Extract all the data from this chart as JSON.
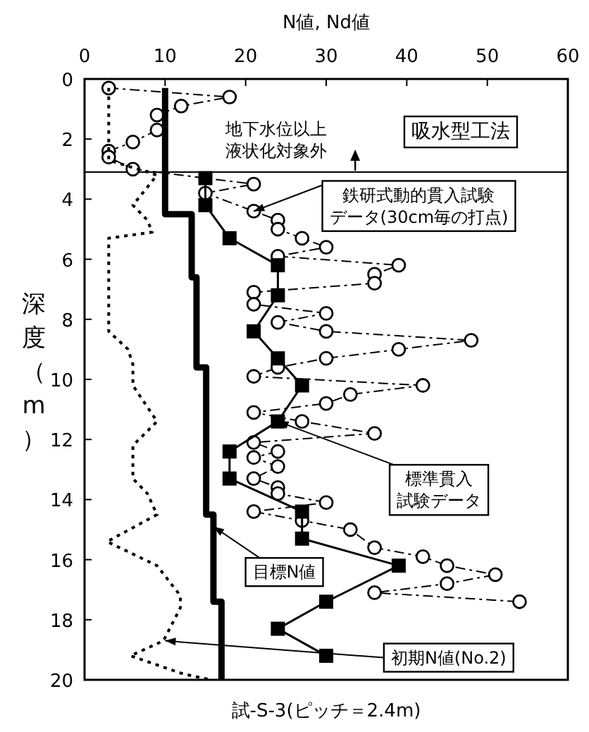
{
  "chart_data": {
    "type": "line",
    "xlabel": "N値, Nd値",
    "ylabel": "深度（m）",
    "xlim": [
      0,
      60
    ],
    "xticks": [
      0,
      10,
      20,
      30,
      40,
      50,
      60
    ],
    "ylim": [
      20,
      0
    ],
    "yticks": [
      0,
      2,
      4,
      6,
      8,
      10,
      12,
      14,
      16,
      18,
      20
    ],
    "grid": false,
    "series": [
      {
        "type": "line",
        "color": "#000000",
        "marker": "circle",
        "line_style": "dashed",
        "x": [
          3,
          18,
          12,
          9,
          9,
          6,
          3,
          3,
          6,
          21,
          15,
          21,
          24,
          24,
          27,
          30,
          24,
          39,
          36,
          36,
          21,
          21,
          30,
          24,
          30,
          48,
          39,
          30,
          24,
          21,
          42,
          33,
          30,
          21,
          27,
          36,
          21,
          24,
          21,
          24,
          21,
          24,
          24,
          30,
          21,
          27,
          33,
          36,
          42,
          45,
          51,
          45,
          36,
          54
        ],
        "values": [
          0.3,
          0.6,
          0.9,
          1.2,
          1.7,
          2.1,
          2.4,
          2.6,
          3.0,
          3.5,
          3.8,
          4.4,
          4.7,
          5.0,
          5.3,
          5.6,
          5.9,
          6.2,
          6.5,
          6.8,
          7.1,
          7.5,
          7.8,
          8.1,
          8.4,
          8.7,
          9.0,
          9.3,
          9.6,
          9.9,
          10.2,
          10.5,
          10.8,
          11.1,
          11.4,
          11.8,
          12.1,
          12.4,
          12.6,
          12.9,
          13.3,
          13.6,
          13.8,
          14.1,
          14.4,
          14.7,
          15.0,
          15.6,
          15.9,
          16.2,
          16.5,
          16.8,
          17.1,
          17.4
        ]
      },
      {
        "type": "line",
        "color": "#000000",
        "marker": "square",
        "line_style": "solid",
        "x": [
          15,
          15,
          18,
          24,
          24,
          21,
          24,
          27,
          24,
          18,
          18,
          27,
          27,
          39,
          30,
          24,
          30
        ],
        "values": [
          3.3,
          4.2,
          5.3,
          6.2,
          7.2,
          8.4,
          9.3,
          10.2,
          11.4,
          12.4,
          13.3,
          14.4,
          15.3,
          16.2,
          17.4,
          18.3,
          19.2
        ]
      },
      {
        "type": "line",
        "color": "#000000",
        "marker": "none",
        "line_style": "solid",
        "x": [
          10,
          10,
          13.3,
          13.3,
          13.9,
          13.9,
          15.1,
          15.1,
          16,
          16,
          17,
          17
        ],
        "values": [
          0.3,
          4.5,
          4.5,
          6.6,
          6.6,
          9.6,
          9.6,
          14.5,
          14.5,
          17.4,
          17.4,
          20
        ]
      },
      {
        "type": "line",
        "color": "#000000",
        "marker": "none",
        "line_style": "dotted",
        "x": [
          3,
          3,
          9,
          6,
          7.8,
          8.4,
          3,
          3,
          5.4,
          6,
          6,
          9,
          6,
          6,
          7.8,
          9,
          2.8,
          9,
          11.9,
          11.9,
          9.8,
          5.7,
          12.2,
          15.7
        ],
        "values": [
          0.3,
          2.7,
          3.2,
          4.2,
          4.7,
          5.1,
          5.3,
          8.4,
          9.0,
          9.5,
          10.2,
          11.4,
          12.2,
          13.3,
          13.8,
          14.5,
          15.4,
          16.2,
          17.2,
          17.6,
          18.7,
          19.2,
          19.8,
          20
        ]
      }
    ],
    "ref_lines": [
      {
        "axis": "y",
        "value": 3.1,
        "color": "#000000"
      }
    ],
    "annotations": [
      "吸水型工法",
      "地下水位以上液状化対象外",
      {
        "text": "鉄研式動的貫入試験データ(30cm毎の打点)",
        "x": 21,
        "y": 4.4
      },
      {
        "text": "標準貫入試験データ",
        "x": 24,
        "y": 11.4
      },
      {
        "text": "目標N値",
        "x": 16,
        "y": 14.9
      },
      {
        "text": "初期N値(No.2)",
        "x": 10,
        "y": 18.7
      },
      "試-S-3(ピッチ＝2.4m)"
    ]
  }
}
